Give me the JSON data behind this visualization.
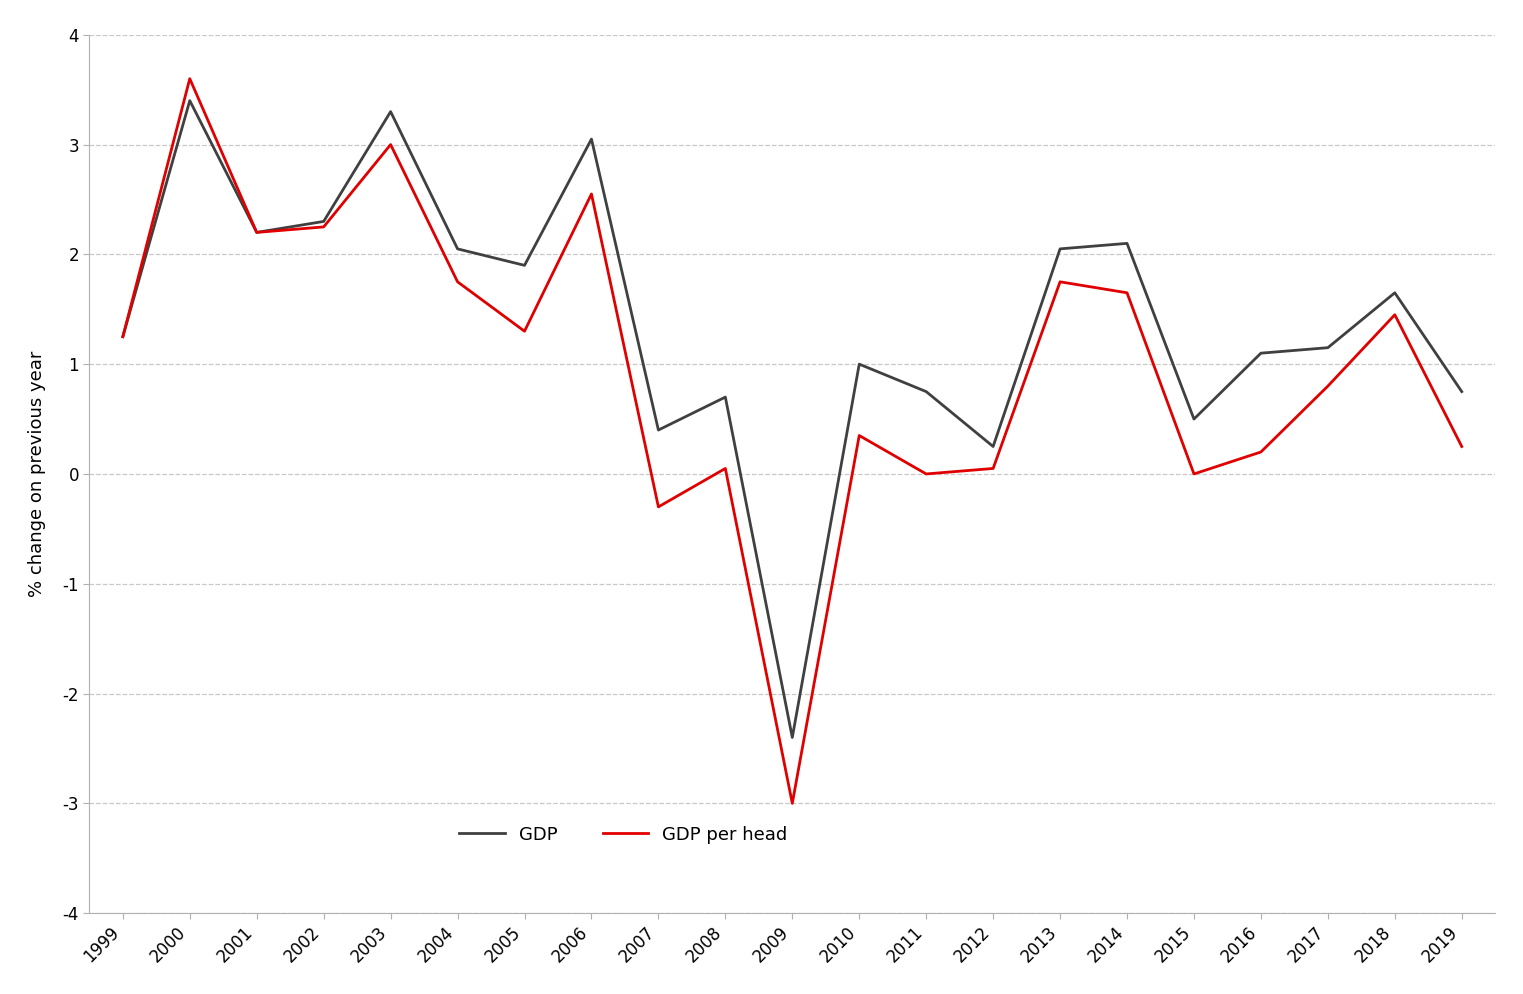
{
  "years": [
    1999,
    2000,
    2001,
    2002,
    2003,
    2004,
    2005,
    2006,
    2007,
    2008,
    2009,
    2010,
    2011,
    2012,
    2013,
    2014,
    2015,
    2016,
    2017,
    2018,
    2019
  ],
  "gdp_per_head": [
    1.25,
    3.6,
    2.2,
    2.25,
    3.0,
    1.75,
    1.3,
    2.55,
    -0.3,
    0.05,
    -3.0,
    0.35,
    0.0,
    0.05,
    1.75,
    1.65,
    0.0,
    0.2,
    0.8,
    1.45,
    0.25
  ],
  "gdp": [
    1.25,
    3.4,
    2.2,
    2.3,
    3.3,
    2.05,
    1.9,
    3.05,
    0.4,
    0.7,
    -2.4,
    1.0,
    0.75,
    0.25,
    2.05,
    2.1,
    0.5,
    1.1,
    1.15,
    1.65,
    0.75
  ],
  "gdp_per_head_color": "#e00000",
  "gdp_color": "#404040",
  "ylabel": "% change on previous year",
  "ylim": [
    -4,
    4
  ],
  "yticks": [
    -4,
    -3,
    -2,
    -1,
    0,
    1,
    2,
    3,
    4
  ],
  "background_color": "#ffffff",
  "legend_gdp_per_head": "GDP per head",
  "legend_gdp": "GDP",
  "grid_color": "#c8c8c8",
  "line_width": 2.0
}
